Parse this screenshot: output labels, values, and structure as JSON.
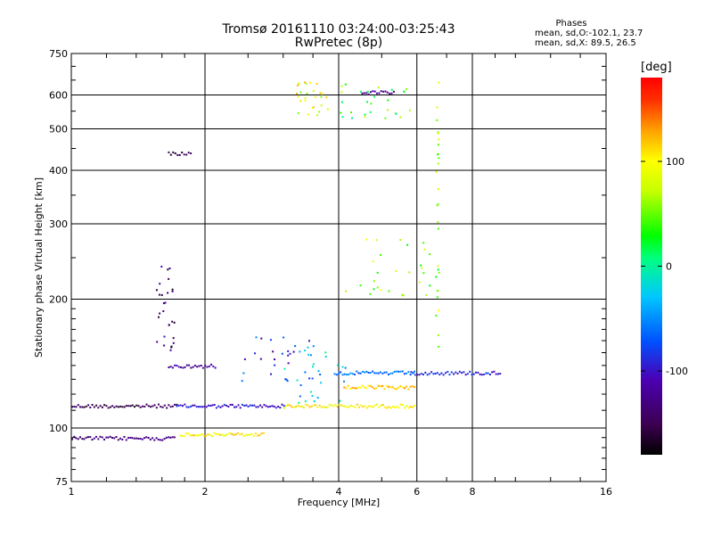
{
  "title": {
    "line1": "Tromsø 20161110 03:24:00-03:25:43",
    "line2": "RwPretec (8p)"
  },
  "phases_info": {
    "header": "Phases",
    "line_o": "mean, sd,O:-102.1, 23.7",
    "line_x": "mean, sd,X:  89.5, 26.5"
  },
  "chart_data": {
    "type": "scatter",
    "title": "Tromsø 20161110 03:24:00-03:25:43",
    "subtitle": "RwPretec (8p)",
    "xlabel": "Frequency [MHz]",
    "ylabel": "Stationary phase Virtual Height [km]",
    "x_scale": "log",
    "y_scale": "log",
    "xlim": [
      1,
      16
    ],
    "ylim": [
      75,
      750
    ],
    "x_ticks": [
      1,
      2,
      4,
      6,
      8,
      16
    ],
    "x_tick_labels": [
      "1",
      "2",
      "4",
      "6",
      "8",
      "16"
    ],
    "y_ticks": [
      75,
      100,
      200,
      300,
      400,
      500,
      600,
      750
    ],
    "y_tick_labels": [
      "75",
      "100",
      "200",
      "300",
      "400",
      "500",
      "600",
      "750"
    ],
    "grid": true,
    "color_scale": {
      "label": "[deg]",
      "range": [
        -180,
        180
      ],
      "ticks": [
        -100,
        0,
        100
      ],
      "tick_labels": [
        "-100",
        "0",
        "100"
      ],
      "colormap": "rainbow"
    },
    "traces": [
      {
        "x_range": [
          1.0,
          1.72
        ],
        "height": 113,
        "phase": -150
      },
      {
        "x_range": [
          1.72,
          3.0
        ],
        "height": 113,
        "phase": -100
      },
      {
        "x_range": [
          3.0,
          5.9
        ],
        "height": 113,
        "phase": 100
      },
      {
        "x_range": [
          1.0,
          1.7
        ],
        "height": 95,
        "phase": -130
      },
      {
        "x_range": [
          1.75,
          2.7
        ],
        "height": 97,
        "phase": 105
      },
      {
        "x_range": [
          1.65,
          2.1
        ],
        "height": 140,
        "phase": -120
      },
      {
        "x_range": [
          5.8,
          9.2
        ],
        "height": 135,
        "phase": -90
      },
      {
        "x_range": [
          3.9,
          5.9
        ],
        "height": 135,
        "phase": -60
      },
      {
        "x_range": [
          4.1,
          5.9
        ],
        "height": 125,
        "phase": 120
      },
      {
        "x_range": [
          1.65,
          1.85
        ],
        "height": 440,
        "phase": -150
      },
      {
        "x_range": [
          4.5,
          5.3
        ],
        "height": 610,
        "phase": -120
      }
    ],
    "scatter_clusters": [
      {
        "x_range": [
          2.4,
          3.5
        ],
        "height_range": [
          128,
          165
        ],
        "phase": -90
      },
      {
        "x_range": [
          3.0,
          4.2
        ],
        "height_range": [
          115,
          160
        ],
        "phase": -30
      },
      {
        "x_range": [
          4.0,
          6.5
        ],
        "height_range": [
          200,
          280
        ],
        "phase": 60
      },
      {
        "x_range": [
          3.2,
          3.8
        ],
        "height_range": [
          540,
          650
        ],
        "phase": 90
      },
      {
        "x_range": [
          4.0,
          5.8
        ],
        "height_range": [
          530,
          640
        ],
        "phase": 40
      },
      {
        "x_range": [
          1.55,
          1.7
        ],
        "height_range": [
          150,
          240
        ],
        "phase": -140
      },
      {
        "x_range": [
          6.6,
          6.7
        ],
        "height_range": [
          140,
          650
        ],
        "phase": 60
      }
    ]
  }
}
